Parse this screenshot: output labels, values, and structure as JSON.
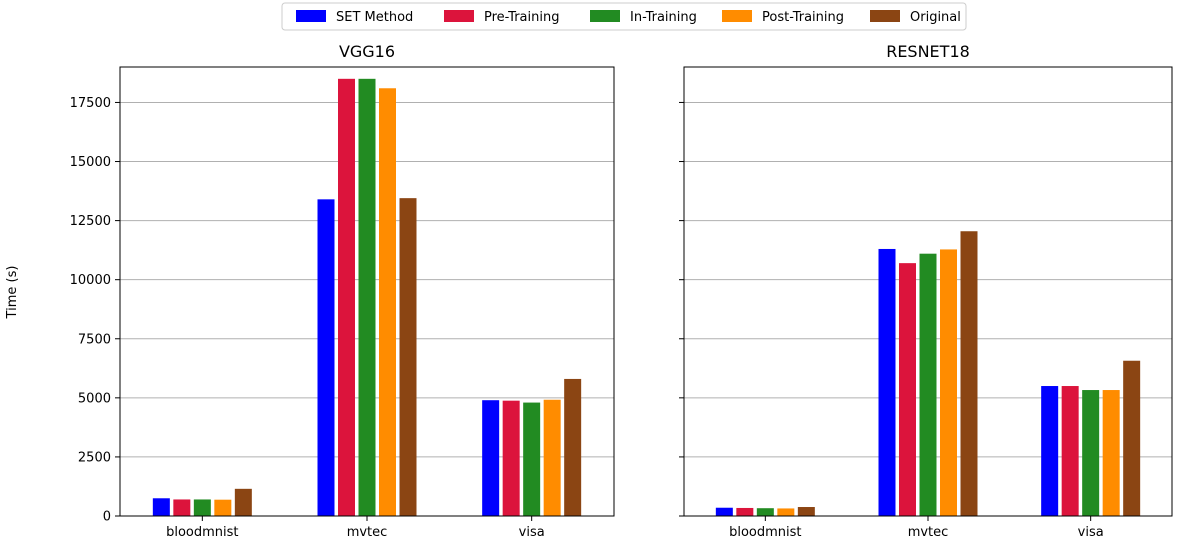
{
  "figure": {
    "ylabel": "Time (s)"
  },
  "legend": {
    "position": "top-center",
    "entries": [
      {
        "label": "SET Method",
        "color": "#0000ff"
      },
      {
        "label": "Pre-Training",
        "color": "#dc143c"
      },
      {
        "label": "In-Training",
        "color": "#228b22"
      },
      {
        "label": "Post-Training",
        "color": "#ff8c00"
      },
      {
        "label": "Original",
        "color": "#8b4513"
      }
    ]
  },
  "chart_data": [
    {
      "type": "bar",
      "title": "VGG16",
      "xlabel": "",
      "ylabel": "Time (s)",
      "ylim": [
        0,
        19000
      ],
      "yticks": [
        0,
        2500,
        5000,
        7500,
        10000,
        12500,
        15000,
        17500
      ],
      "grid": "y",
      "categories": [
        "bloodmnist",
        "mvtec",
        "visa"
      ],
      "series": [
        {
          "name": "SET Method",
          "color": "#0000ff",
          "values": [
            750,
            13400,
            4900
          ]
        },
        {
          "name": "Pre-Training",
          "color": "#dc143c",
          "values": [
            700,
            18500,
            4880
          ]
        },
        {
          "name": "In-Training",
          "color": "#228b22",
          "values": [
            700,
            18500,
            4800
          ]
        },
        {
          "name": "Post-Training",
          "color": "#ff8c00",
          "values": [
            690,
            18100,
            4920
          ]
        },
        {
          "name": "Original",
          "color": "#8b4513",
          "values": [
            1150,
            13450,
            5800
          ]
        }
      ]
    },
    {
      "type": "bar",
      "title": "RESNET18",
      "xlabel": "",
      "ylabel": "",
      "ylim": [
        0,
        19000
      ],
      "yticks": [
        0,
        2500,
        5000,
        7500,
        10000,
        12500,
        15000,
        17500
      ],
      "grid": "y",
      "categories": [
        "bloodmnist",
        "mvtec",
        "visa"
      ],
      "series": [
        {
          "name": "SET Method",
          "color": "#0000ff",
          "values": [
            350,
            11300,
            5500
          ]
        },
        {
          "name": "Pre-Training",
          "color": "#dc143c",
          "values": [
            340,
            10700,
            5500
          ]
        },
        {
          "name": "In-Training",
          "color": "#228b22",
          "values": [
            330,
            11100,
            5330
          ]
        },
        {
          "name": "Post-Training",
          "color": "#ff8c00",
          "values": [
            320,
            11280,
            5330
          ]
        },
        {
          "name": "Original",
          "color": "#8b4513",
          "values": [
            380,
            12050,
            6570
          ]
        }
      ]
    }
  ]
}
